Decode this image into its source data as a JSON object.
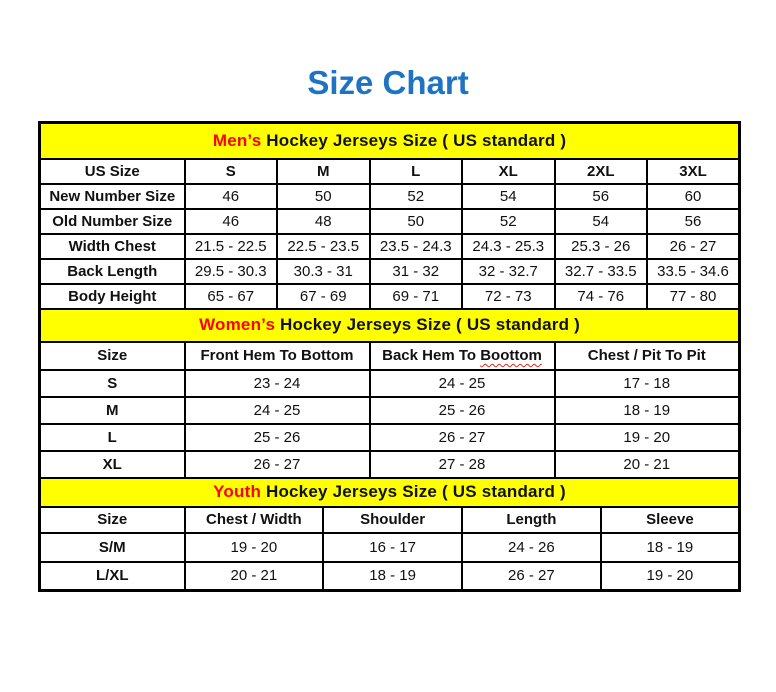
{
  "page": {
    "title": "Size Chart"
  },
  "colors": {
    "title_blue": "#1e73c2",
    "section_header_bg": "#ffff00",
    "accent_red": "#ff0000",
    "text_black": "#111111"
  },
  "mens": {
    "header_accent": "Men’s",
    "header_rest": " Hockey Jerseys Size ( US standard )",
    "columns": [
      "US Size",
      "S",
      "M",
      "L",
      "XL",
      "2XL",
      "3XL"
    ],
    "rows": [
      {
        "label": "New Number Size",
        "values": [
          "46",
          "50",
          "52",
          "54",
          "56",
          "60"
        ]
      },
      {
        "label": "Old Number Size",
        "values": [
          "46",
          "48",
          "50",
          "52",
          "54",
          "56"
        ]
      },
      {
        "label": "Width Chest",
        "values": [
          "21.5 - 22.5",
          "22.5 - 23.5",
          "23.5 - 24.3",
          "24.3 - 25.3",
          "25.3 - 26",
          "26 - 27"
        ]
      },
      {
        "label": "Back Length",
        "values": [
          "29.5 - 30.3",
          "30.3 - 31",
          "31 - 32",
          "32 - 32.7",
          "32.7 - 33.5",
          "33.5 - 34.6"
        ]
      },
      {
        "label": "Body Height",
        "values": [
          "65 - 67",
          "67 - 69",
          "69 - 71",
          "72 - 73",
          "74 - 76",
          "77 - 80"
        ]
      }
    ]
  },
  "womens": {
    "header_accent": "Women’s",
    "header_rest": " Hockey Jerseys Size ( US standard )",
    "columns": [
      "Size",
      "Front Hem To Bottom",
      "Back Hem To Boottom",
      "Chest / Pit To Pit"
    ],
    "spellcheck": {
      "prefix": "Back Hem To",
      "underlined_word": "Boottom"
    },
    "rows": [
      {
        "label": "S",
        "values": [
          "23 - 24",
          "24 - 25",
          "17 - 18"
        ]
      },
      {
        "label": "M",
        "values": [
          "24 - 25",
          "25 - 26",
          "18 - 19"
        ]
      },
      {
        "label": "L",
        "values": [
          "25 - 26",
          "26 - 27",
          "19 - 20"
        ]
      },
      {
        "label": "XL",
        "values": [
          "26 - 27",
          "27 - 28",
          "20 - 21"
        ]
      }
    ]
  },
  "youth": {
    "header_accent": "Youth",
    "header_rest": " Hockey Jerseys Size ( US standard )",
    "columns": [
      "Size",
      "Chest / Width",
      "Shoulder",
      "Length",
      "Sleeve"
    ],
    "rows": [
      {
        "label": "S/M",
        "values": [
          "19 - 20",
          "16 - 17",
          "24 - 26",
          "18 - 19"
        ]
      },
      {
        "label": "L/XL",
        "values": [
          "20 - 21",
          "18 - 19",
          "26 - 27",
          "19 - 20"
        ]
      }
    ]
  }
}
